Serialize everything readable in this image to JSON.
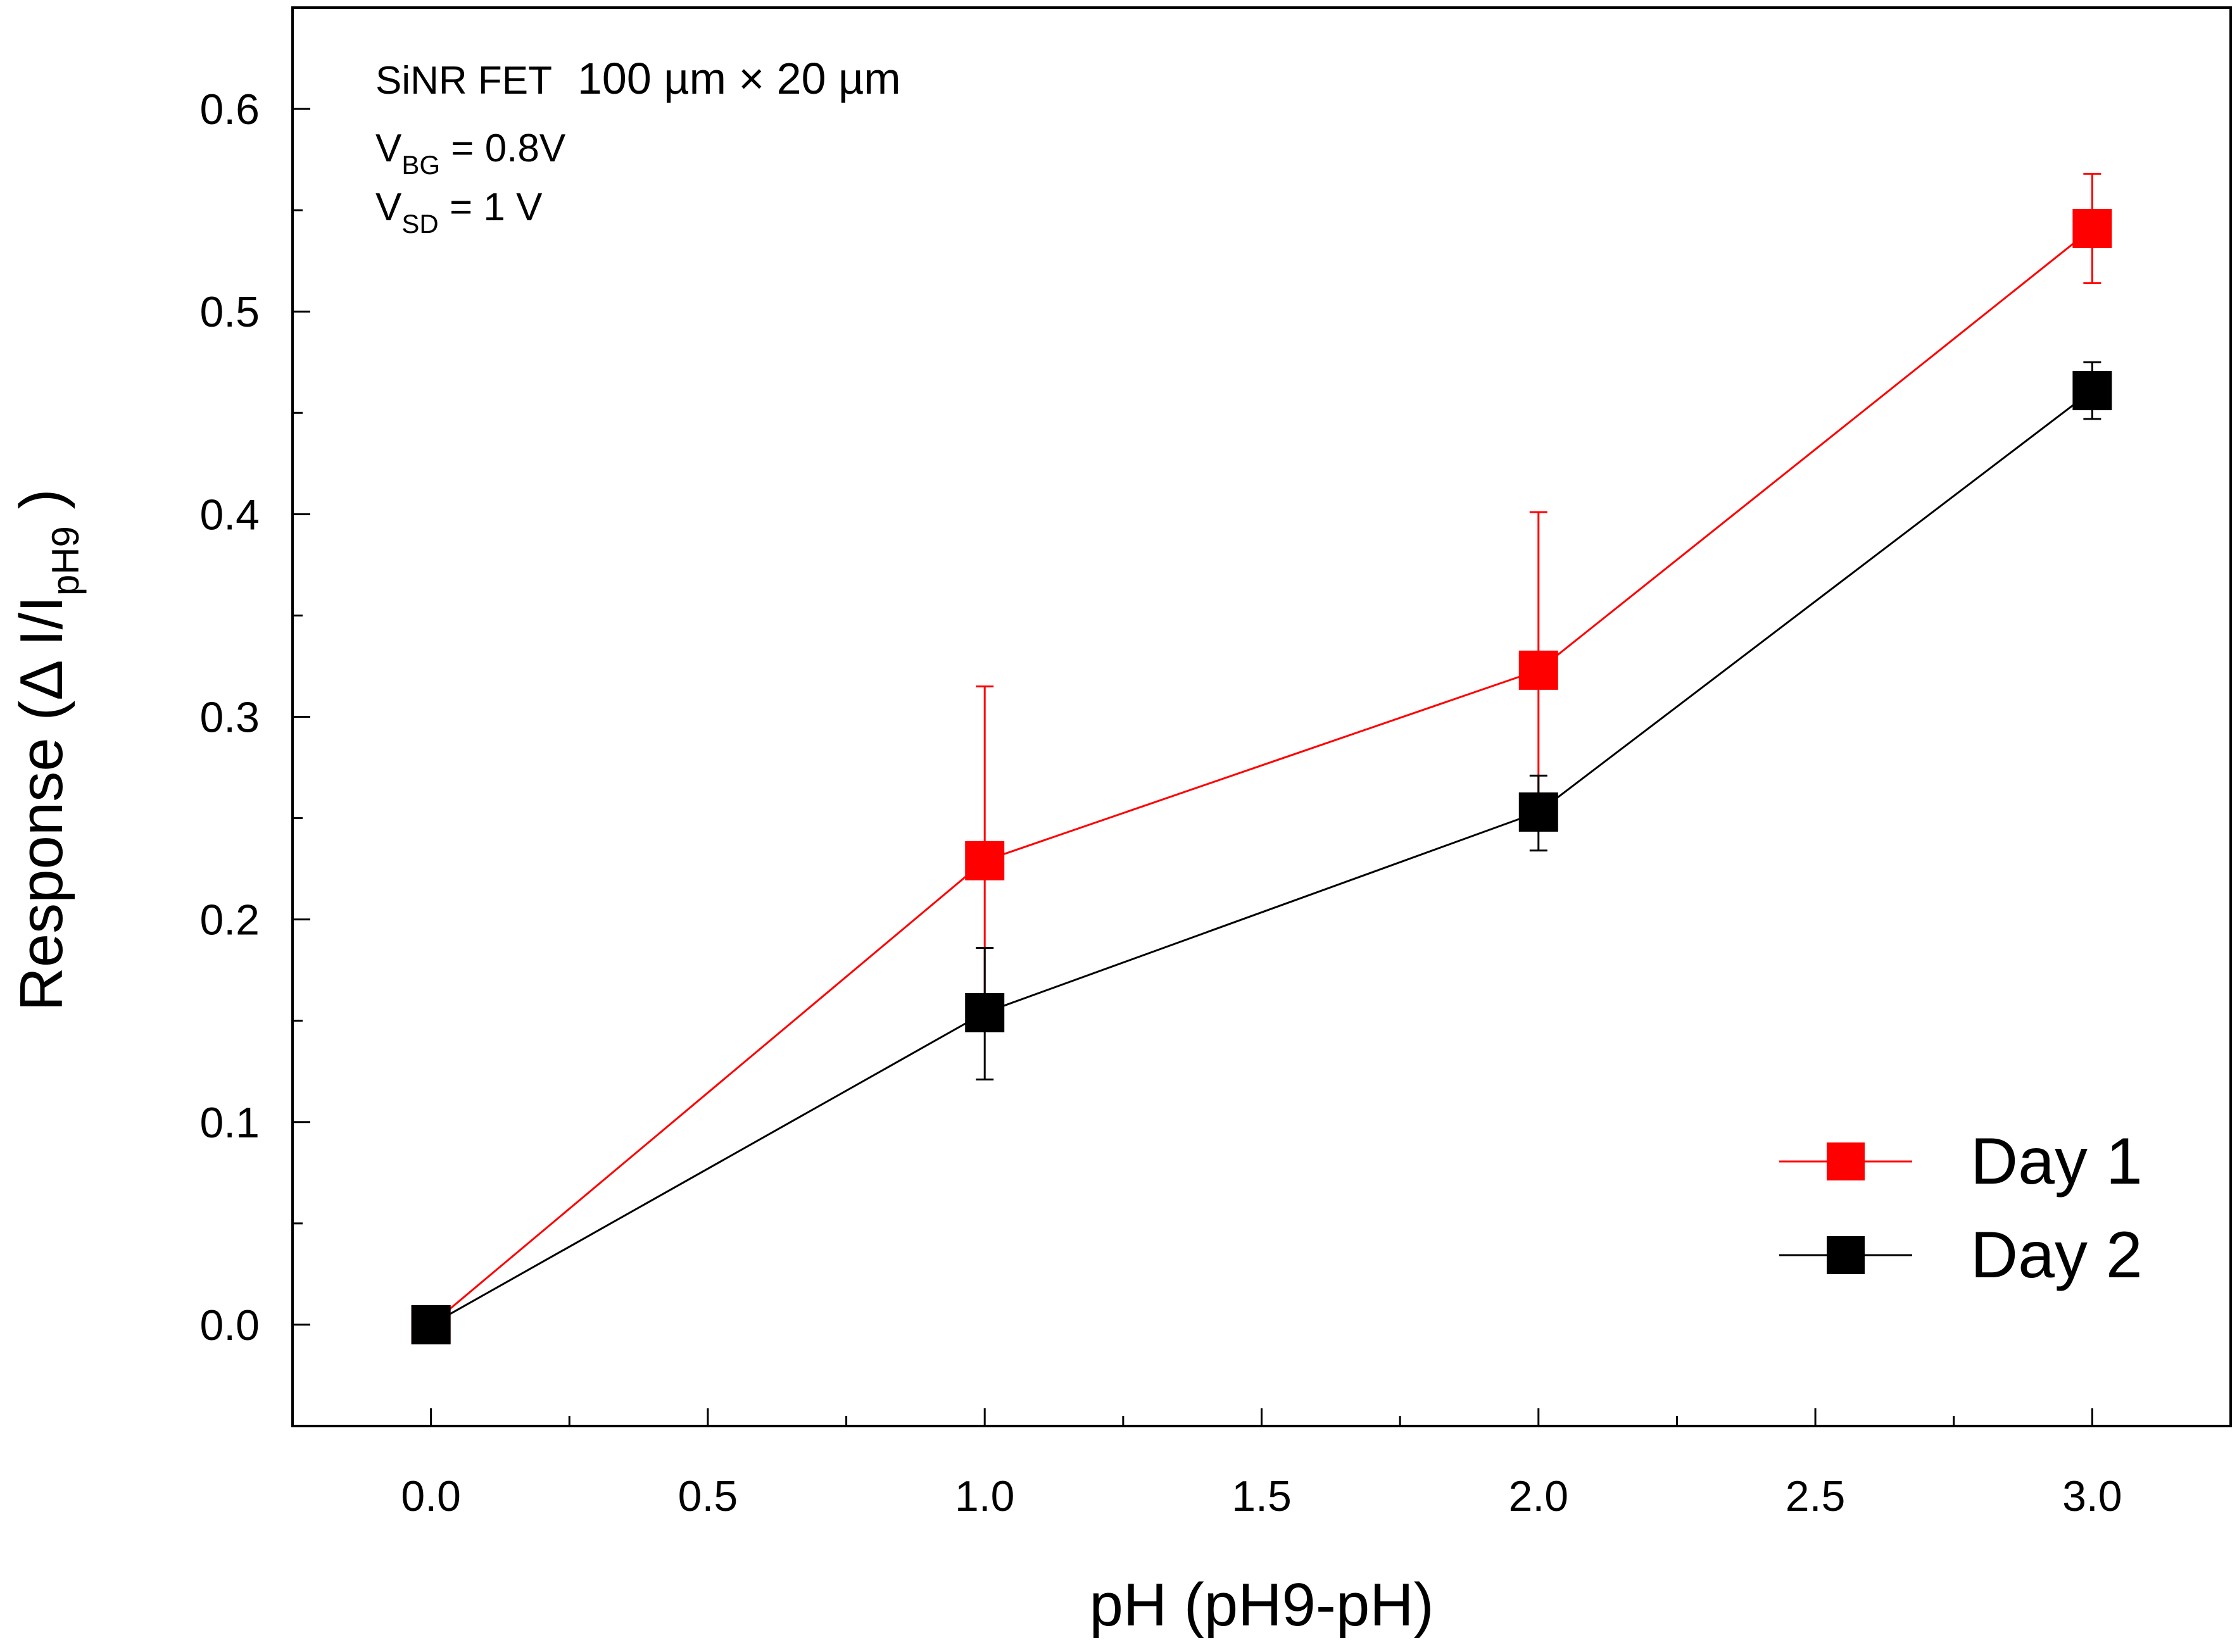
{
  "chart_data": {
    "type": "line",
    "xlabel": "pH (pH9-pH)",
    "ylabel": {
      "main": "Response (Δ I/I",
      "sub": "pH9",
      "close": " )"
    },
    "xlim": [
      -0.25,
      3.25
    ],
    "ylim": [
      -0.05,
      0.65
    ],
    "x_ticks": [
      0.0,
      0.5,
      1.0,
      1.5,
      2.0,
      2.5,
      3.0
    ],
    "x_tick_labels": [
      "0.0",
      "0.5",
      "1.0",
      "1.5",
      "2.0",
      "2.5",
      "3.0"
    ],
    "x_minor_ticks": [
      0.25,
      0.75,
      1.25,
      1.75,
      2.25,
      2.75
    ],
    "y_ticks": [
      0.0,
      0.1,
      0.2,
      0.3,
      0.4,
      0.5,
      0.6
    ],
    "y_tick_labels": [
      "0.0",
      "0.1",
      "0.2",
      "0.3",
      "0.4",
      "0.5",
      "0.6"
    ],
    "y_minor_ticks": [
      -0.05,
      0.05,
      0.15,
      0.25,
      0.35,
      0.45,
      0.55
    ],
    "grid": false,
    "legend_position": "bottom-right",
    "series": [
      {
        "name": "Day 1",
        "color": "#ff0000",
        "x": [
          0,
          1,
          2,
          3
        ],
        "values": [
          0.0,
          0.229,
          0.323,
          0.541
        ],
        "err_low": [
          0.0,
          0.078,
          0.079,
          0.027
        ],
        "err_high": [
          0.0,
          0.086,
          0.078,
          0.027
        ]
      },
      {
        "name": "Day 2",
        "color": "#000000",
        "x": [
          0,
          1,
          2,
          3
        ],
        "values": [
          0.0,
          0.154,
          0.253,
          0.461
        ],
        "err_low": [
          0.0,
          0.033,
          0.019,
          0.014
        ],
        "err_high": [
          0.0,
          0.032,
          0.018,
          0.014
        ]
      }
    ],
    "annotation": {
      "line1": "SiNR FET",
      "line1_dims": "100 µm × 20 µm",
      "line2_main": "V",
      "line2_sub": "BG",
      "line2_rest": " = 0.8V",
      "line3_main": "V",
      "line3_sub": "SD",
      "line3_rest": " = 1 V"
    }
  }
}
